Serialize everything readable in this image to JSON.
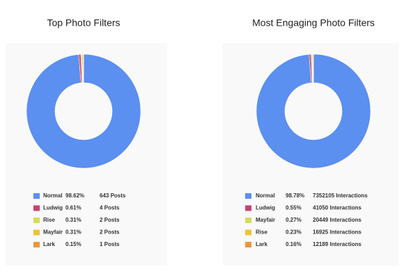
{
  "chart_data": [
    {
      "type": "pie",
      "title": "Top Photo Filters",
      "categories": [
        "Normal",
        "Ludwig",
        "Rise",
        "Mayfair",
        "Lark"
      ],
      "values": [
        98.62,
        0.61,
        0.31,
        0.31,
        0.15
      ],
      "value_labels": [
        "98.62%",
        "0.61%",
        "0.31%",
        "0.31%",
        "0.15%"
      ],
      "count_labels": [
        "643 Posts",
        "4 Posts",
        "2 Posts",
        "2 Posts",
        "1 Posts"
      ],
      "colors": [
        "#5b8ff0",
        "#c8436e",
        "#d3dc5c",
        "#efc234",
        "#ef953c"
      ]
    },
    {
      "type": "pie",
      "title": "Most Engaging Photo Filters",
      "categories": [
        "Normal",
        "Ludwig",
        "Mayfair",
        "Rise",
        "Lark"
      ],
      "values": [
        98.78,
        0.55,
        0.27,
        0.23,
        0.16
      ],
      "value_labels": [
        "98.78%",
        "0.55%",
        "0.27%",
        "0.23%",
        "0.16%"
      ],
      "count_labels": [
        "7352105 Interactions",
        "41050 Interactions",
        "20449 Interactions",
        "16925 Interactions",
        "12189 Interactions"
      ],
      "colors": [
        "#5b8ff0",
        "#c8436e",
        "#d3dc5c",
        "#efc234",
        "#ef953c"
      ]
    }
  ]
}
